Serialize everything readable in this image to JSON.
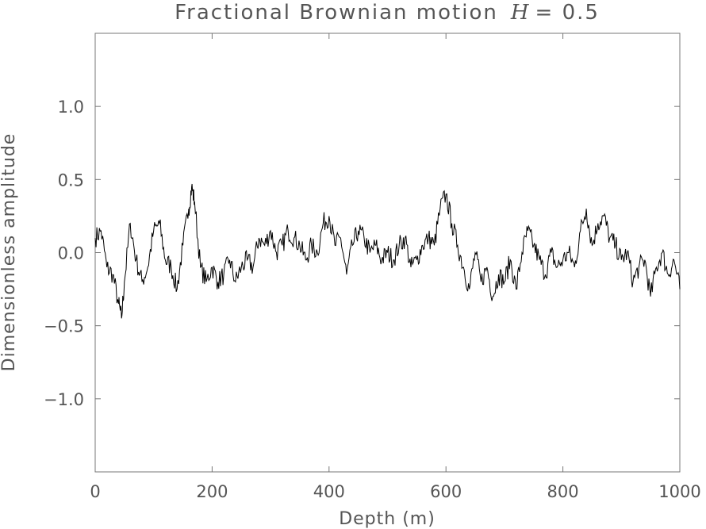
{
  "chart_data": {
    "type": "line",
    "title": {
      "text": "Fractional Brownian motion",
      "symbol": "H",
      "equals": "= 0.5"
    },
    "xlabel": "Depth (m)",
    "ylabel": "Dimensionless amplitude",
    "xlim": [
      0,
      1000
    ],
    "ylim": [
      -1.5,
      1.5
    ],
    "xticks": [
      0,
      200,
      400,
      600,
      800,
      1000
    ],
    "xtick_labels": [
      "0",
      "200",
      "400",
      "600",
      "800",
      "1000"
    ],
    "yticks": [
      1.0,
      0.5,
      0.0,
      -0.5,
      -1.0
    ],
    "ytick_labels": [
      "1.0",
      "0.5",
      "0.0",
      "−0.5",
      "−1.0"
    ],
    "grid": false,
    "line_color": "#000000",
    "series": [
      {
        "x": [
          0,
          10,
          20,
          30,
          40,
          45,
          50,
          60,
          70,
          80,
          90,
          100,
          110,
          120,
          130,
          140,
          150,
          160,
          165,
          170,
          180,
          190,
          200,
          210,
          220,
          230,
          240,
          250,
          260,
          270,
          280,
          290,
          300,
          310,
          320,
          330,
          340,
          350,
          360,
          370,
          380,
          390,
          400,
          410,
          420,
          430,
          440,
          450,
          460,
          470,
          480,
          490,
          500,
          510,
          520,
          530,
          540,
          550,
          560,
          570,
          580,
          590,
          600,
          610,
          620,
          630,
          640,
          650,
          660,
          670,
          680,
          690,
          700,
          710,
          720,
          730,
          740,
          750,
          760,
          770,
          780,
          790,
          800,
          810,
          820,
          830,
          840,
          850,
          860,
          870,
          880,
          890,
          900,
          910,
          920,
          930,
          940,
          950,
          960,
          970,
          980,
          990,
          1000
        ],
        "y": [
          0.1,
          0.15,
          -0.1,
          -0.15,
          -0.35,
          -0.45,
          -0.2,
          0.2,
          -0.05,
          -0.2,
          -0.1,
          0.15,
          0.2,
          -0.05,
          -0.1,
          -0.25,
          0.05,
          0.3,
          0.45,
          0.35,
          -0.1,
          -0.2,
          -0.1,
          -0.2,
          -0.15,
          -0.05,
          -0.2,
          -0.1,
          -0.05,
          -0.1,
          0.1,
          0.05,
          0.15,
          0.0,
          0.05,
          0.15,
          0.1,
          0.05,
          -0.05,
          0.05,
          0.0,
          0.2,
          0.25,
          0.05,
          0.1,
          -0.15,
          0.05,
          0.15,
          0.1,
          0.0,
          0.05,
          -0.05,
          0.0,
          -0.05,
          0.05,
          0.1,
          -0.1,
          -0.05,
          0.05,
          0.1,
          0.05,
          0.3,
          0.4,
          0.2,
          0.05,
          -0.1,
          -0.25,
          0.0,
          -0.2,
          -0.1,
          -0.3,
          -0.15,
          -0.2,
          -0.05,
          -0.25,
          0.0,
          0.15,
          0.05,
          -0.05,
          -0.15,
          0.0,
          -0.1,
          -0.05,
          0.0,
          -0.1,
          0.15,
          0.3,
          0.05,
          0.2,
          0.25,
          0.1,
          0.05,
          -0.05,
          0.0,
          -0.2,
          -0.1,
          -0.05,
          -0.3,
          -0.1,
          0.0,
          -0.15,
          -0.05,
          -0.25
        ]
      }
    ]
  }
}
